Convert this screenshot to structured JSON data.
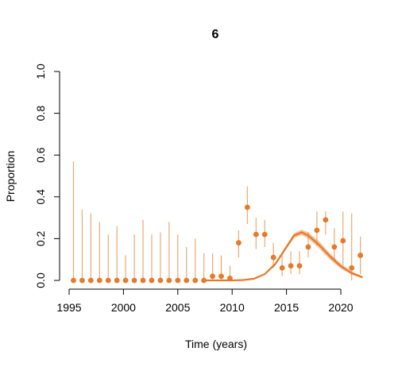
{
  "chart_data": {
    "type": "line",
    "title": "6",
    "xlabel": "Time (years)",
    "ylabel": "Proportion",
    "xlim": [
      1995,
      2022.5
    ],
    "ylim": [
      0,
      1
    ],
    "x_ticks": [
      {
        "value": 1995,
        "label": "1995"
      },
      {
        "value": 2000,
        "label": "2000"
      },
      {
        "value": 2005,
        "label": "2005"
      },
      {
        "value": 2010,
        "label": "2010"
      },
      {
        "value": 2015,
        "label": "2015"
      },
      {
        "value": 2020,
        "label": "2020"
      }
    ],
    "y_ticks": [
      {
        "value": 0.0,
        "label": "0.0"
      },
      {
        "value": 0.2,
        "label": "0.2"
      },
      {
        "value": 0.4,
        "label": "0.4"
      },
      {
        "value": 0.6,
        "label": "0.6"
      },
      {
        "value": 0.8,
        "label": "0.8"
      },
      {
        "value": 1.0,
        "label": "1.0"
      }
    ],
    "grid": false,
    "color": "#e57a29",
    "observed": [
      {
        "x": 1995.4,
        "y": 0.0,
        "lo": 0.0,
        "hi": 0.57
      },
      {
        "x": 1996.2,
        "y": 0.0,
        "lo": 0.0,
        "hi": 0.34
      },
      {
        "x": 1997.0,
        "y": 0.0,
        "lo": 0.0,
        "hi": 0.32
      },
      {
        "x": 1997.8,
        "y": 0.0,
        "lo": 0.0,
        "hi": 0.28
      },
      {
        "x": 1998.6,
        "y": 0.0,
        "lo": 0.0,
        "hi": 0.22
      },
      {
        "x": 1999.4,
        "y": 0.0,
        "lo": 0.0,
        "hi": 0.26
      },
      {
        "x": 2000.2,
        "y": 0.0,
        "lo": 0.0,
        "hi": 0.12
      },
      {
        "x": 2001.0,
        "y": 0.0,
        "lo": 0.0,
        "hi": 0.22
      },
      {
        "x": 2001.8,
        "y": 0.0,
        "lo": 0.0,
        "hi": 0.29
      },
      {
        "x": 2002.6,
        "y": 0.0,
        "lo": 0.0,
        "hi": 0.22
      },
      {
        "x": 2003.4,
        "y": 0.0,
        "lo": 0.0,
        "hi": 0.23
      },
      {
        "x": 2004.2,
        "y": 0.0,
        "lo": 0.0,
        "hi": 0.28
      },
      {
        "x": 2005.0,
        "y": 0.0,
        "lo": 0.0,
        "hi": 0.22
      },
      {
        "x": 2005.8,
        "y": 0.0,
        "lo": 0.0,
        "hi": 0.16
      },
      {
        "x": 2006.6,
        "y": 0.0,
        "lo": 0.0,
        "hi": 0.2
      },
      {
        "x": 2007.4,
        "y": 0.0,
        "lo": 0.0,
        "hi": 0.13
      },
      {
        "x": 2008.2,
        "y": 0.02,
        "lo": 0.0,
        "hi": 0.13
      },
      {
        "x": 2009.0,
        "y": 0.02,
        "lo": 0.0,
        "hi": 0.12
      },
      {
        "x": 2009.8,
        "y": 0.01,
        "lo": 0.0,
        "hi": 0.07
      },
      {
        "x": 2010.6,
        "y": 0.18,
        "lo": 0.11,
        "hi": 0.24
      },
      {
        "x": 2011.4,
        "y": 0.35,
        "lo": 0.27,
        "hi": 0.45
      },
      {
        "x": 2012.2,
        "y": 0.22,
        "lo": 0.15,
        "hi": 0.3
      },
      {
        "x": 2013.0,
        "y": 0.22,
        "lo": 0.16,
        "hi": 0.29
      },
      {
        "x": 2013.8,
        "y": 0.11,
        "lo": 0.06,
        "hi": 0.18
      },
      {
        "x": 2014.6,
        "y": 0.06,
        "lo": 0.02,
        "hi": 0.12
      },
      {
        "x": 2015.4,
        "y": 0.07,
        "lo": 0.03,
        "hi": 0.14
      },
      {
        "x": 2016.2,
        "y": 0.07,
        "lo": 0.03,
        "hi": 0.14
      },
      {
        "x": 2017.0,
        "y": 0.16,
        "lo": 0.11,
        "hi": 0.23
      },
      {
        "x": 2017.8,
        "y": 0.24,
        "lo": 0.17,
        "hi": 0.33
      },
      {
        "x": 2018.6,
        "y": 0.29,
        "lo": 0.22,
        "hi": 0.33
      },
      {
        "x": 2019.4,
        "y": 0.16,
        "lo": 0.1,
        "hi": 0.25
      },
      {
        "x": 2020.2,
        "y": 0.19,
        "lo": 0.07,
        "hi": 0.33
      },
      {
        "x": 2021.0,
        "y": 0.06,
        "lo": 0.0,
        "hi": 0.32
      },
      {
        "x": 2021.8,
        "y": 0.12,
        "lo": 0.03,
        "hi": 0.21
      }
    ],
    "model": [
      {
        "x": 2007.5,
        "y": 0.0,
        "lo": 0.0,
        "hi": 0.0
      },
      {
        "x": 2010.0,
        "y": 0.0,
        "lo": 0.0,
        "hi": 0.0
      },
      {
        "x": 2011.0,
        "y": 0.002,
        "lo": 0.001,
        "hi": 0.003
      },
      {
        "x": 2012.0,
        "y": 0.008,
        "lo": 0.006,
        "hi": 0.01
      },
      {
        "x": 2013.0,
        "y": 0.03,
        "lo": 0.026,
        "hi": 0.034
      },
      {
        "x": 2014.0,
        "y": 0.08,
        "lo": 0.072,
        "hi": 0.088
      },
      {
        "x": 2015.0,
        "y": 0.16,
        "lo": 0.15,
        "hi": 0.17
      },
      {
        "x": 2015.7,
        "y": 0.215,
        "lo": 0.203,
        "hi": 0.226
      },
      {
        "x": 2016.4,
        "y": 0.23,
        "lo": 0.217,
        "hi": 0.243
      },
      {
        "x": 2017.0,
        "y": 0.215,
        "lo": 0.2,
        "hi": 0.23
      },
      {
        "x": 2018.0,
        "y": 0.17,
        "lo": 0.153,
        "hi": 0.187
      },
      {
        "x": 2019.0,
        "y": 0.115,
        "lo": 0.1,
        "hi": 0.13
      },
      {
        "x": 2020.0,
        "y": 0.068,
        "lo": 0.056,
        "hi": 0.08
      },
      {
        "x": 2021.0,
        "y": 0.035,
        "lo": 0.027,
        "hi": 0.043
      },
      {
        "x": 2022.0,
        "y": 0.015,
        "lo": 0.01,
        "hi": 0.02
      }
    ]
  }
}
